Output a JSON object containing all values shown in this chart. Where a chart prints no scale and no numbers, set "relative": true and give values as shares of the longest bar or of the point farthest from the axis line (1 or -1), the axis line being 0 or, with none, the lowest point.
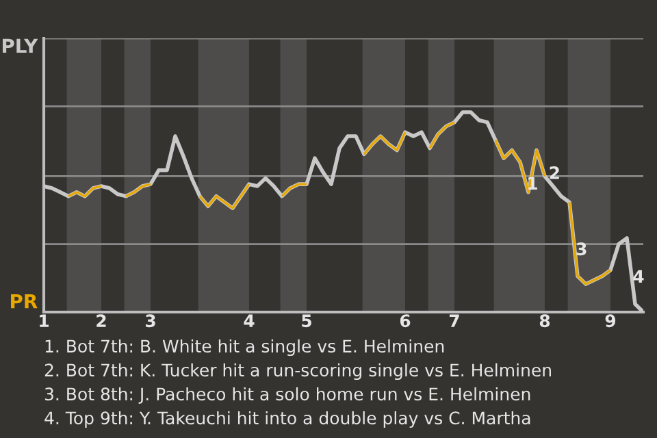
{
  "chart_data": {
    "type": "line",
    "relative": true,
    "legend": false,
    "marker": "none",
    "line_style": "solid",
    "tick_labels": "x",
    "categories": [
      "1",
      null,
      null,
      null,
      null,
      null,
      null,
      "2",
      null,
      null,
      null,
      null,
      null,
      "3",
      null,
      null,
      null,
      null,
      null,
      null,
      null,
      null,
      null,
      null,
      null,
      "4",
      null,
      null,
      null,
      null,
      null,
      null,
      "5",
      null,
      null,
      null,
      null,
      null,
      null,
      null,
      null,
      null,
      null,
      null,
      "6",
      null,
      null,
      null,
      null,
      null,
      "7",
      null,
      null,
      null,
      null,
      null,
      null,
      null,
      null,
      null,
      null,
      "8",
      null,
      null,
      null,
      null,
      null,
      null,
      null,
      "9",
      null,
      null,
      null,
      null
    ],
    "ref_lines": [
      {
        "axis": "y",
        "value": 0.34,
        "color": "#8a8a8a"
      },
      {
        "axis": "y",
        "value": 0.68,
        "color": "#8a8a8a"
      },
      {
        "axis": "y",
        "value": 1.03,
        "color": "#8a8a8a"
      },
      {
        "axis": "y",
        "value": 1.37,
        "color": "#8a8a8a"
      }
    ],
    "series": [
      {
        "color": "#c8c8c8",
        "values": [
          0.63,
          0.62,
          0.6,
          0.58,
          0.6,
          0.58,
          0.62,
          0.63,
          0.62,
          0.59,
          0.58,
          0.6,
          0.63,
          0.64,
          0.71,
          0.71,
          0.88,
          0.78,
          0.67,
          0.58,
          0.53,
          0.58,
          0.55,
          0.52,
          0.58,
          0.64,
          0.63,
          0.67,
          0.63,
          0.58,
          0.62,
          0.64,
          0.64,
          0.77,
          0.7,
          0.64,
          0.82,
          0.88,
          0.88,
          0.79,
          0.84,
          0.88,
          0.84,
          0.81,
          0.9,
          0.88,
          0.9,
          0.82,
          0.89,
          0.93,
          0.95,
          1,
          1,
          0.96,
          0.95,
          0.86,
          0.77,
          0.81,
          0.75,
          0.6,
          0.81,
          0.68,
          0.63,
          0.58,
          0.55,
          0.18,
          0.14,
          0.16,
          0.18,
          0.21,
          0.34,
          0.37,
          0.04,
          0
        ]
      },
      {
        "color": "#e8a800",
        "values": [
          null,
          null,
          null,
          0.58,
          0.6,
          0.58,
          0.62,
          0.63,
          null,
          null,
          0.58,
          0.6,
          0.63,
          0.64,
          null,
          null,
          null,
          null,
          null,
          0.58,
          0.53,
          0.58,
          0.55,
          0.52,
          0.58,
          0.64,
          null,
          null,
          null,
          0.58,
          0.62,
          0.64,
          0.64,
          null,
          null,
          null,
          null,
          null,
          null,
          0.79,
          0.84,
          0.88,
          0.84,
          0.81,
          0.9,
          null,
          null,
          0.82,
          0.89,
          0.93,
          0.95,
          null,
          null,
          null,
          null,
          0.86,
          0.77,
          0.81,
          0.75,
          0.6,
          0.81,
          0.68,
          null,
          null,
          0.55,
          0.18,
          0.14,
          0.16,
          0.18,
          0.21,
          null,
          null,
          null,
          null
        ]
      }
    ],
    "annotations": [
      "PLY",
      "PR",
      "1",
      "3",
      "4",
      {
        "text": "2",
        "x": "8",
        "y": 0.68
      },
      "1. Bot 7th: B. White hit a single vs E. Helminen",
      "2. Bot 7th: K. Tucker hit a run-scoring single vs E. Helminen",
      "3. Bot 8th: J. Pacheco hit a solo home run vs E. Helminen",
      "4. Top 9th: Y. Takeuchi hit into a double play vs C. Martha"
    ]
  }
}
